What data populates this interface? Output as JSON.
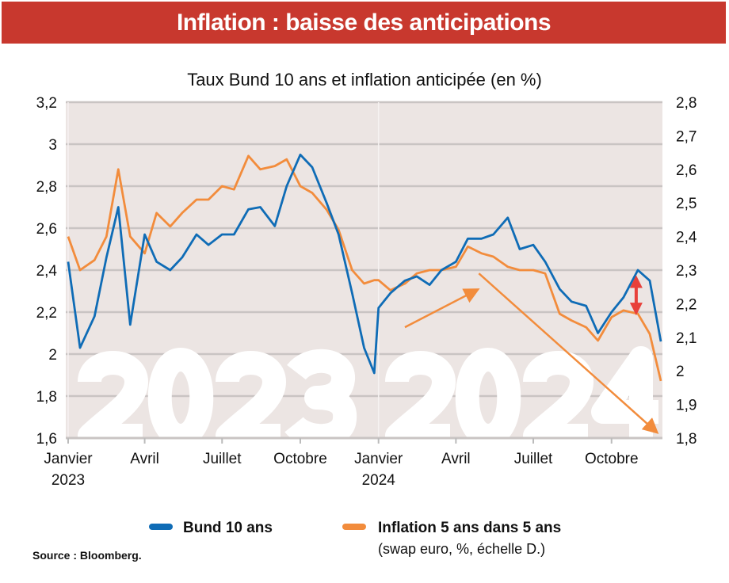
{
  "banner": "Inflation : baisse des anticipations",
  "chart_data": {
    "type": "line",
    "title": "Taux Bund 10 ans et inflation anticipée (en %)",
    "source": "Source : Bloomberg.",
    "x_range": [
      "2023-01-01",
      "2024-11-28"
    ],
    "x_ticks": [
      {
        "date": "2023-01-01",
        "label": "Janvier",
        "year": "2023"
      },
      {
        "date": "2023-04-01",
        "label": "Avril"
      },
      {
        "date": "2023-07-01",
        "label": "Juillet"
      },
      {
        "date": "2023-10-01",
        "label": "Octobre"
      },
      {
        "date": "2024-01-01",
        "label": "Janvier",
        "year": "2024"
      },
      {
        "date": "2024-04-01",
        "label": "Avril"
      },
      {
        "date": "2024-07-01",
        "label": "Juillet"
      },
      {
        "date": "2024-10-01",
        "label": "Octobre"
      }
    ],
    "y_left": {
      "range": [
        1.6,
        3.2
      ],
      "ticks": [
        "1,6",
        "1,8",
        "2",
        "2,2",
        "2,4",
        "2,6",
        "2,8",
        "3",
        "3,2"
      ],
      "values": [
        1.6,
        1.8,
        2.0,
        2.2,
        2.4,
        2.6,
        2.8,
        3.0,
        3.2
      ]
    },
    "y_right": {
      "range": [
        1.8,
        2.8
      ],
      "ticks": [
        "1,8",
        "1,9",
        "2",
        "2,1",
        "2,2",
        "2,3",
        "2,4",
        "2,5",
        "2,6",
        "2,7",
        "2,8"
      ],
      "values": [
        1.8,
        1.9,
        2.0,
        2.1,
        2.2,
        2.3,
        2.4,
        2.5,
        2.6,
        2.7,
        2.8
      ]
    },
    "grid": "horizontal",
    "legend_position": "bottom",
    "watermarks": [
      "2023",
      "2024"
    ],
    "x": [
      "2023-01-01",
      "2023-01-15",
      "2023-02-01",
      "2023-02-15",
      "2023-03-01",
      "2023-03-15",
      "2023-04-01",
      "2023-04-15",
      "2023-05-01",
      "2023-05-15",
      "2023-06-01",
      "2023-06-15",
      "2023-07-01",
      "2023-07-15",
      "2023-08-01",
      "2023-08-15",
      "2023-09-01",
      "2023-09-15",
      "2023-10-01",
      "2023-10-15",
      "2023-11-01",
      "2023-11-15",
      "2023-12-01",
      "2023-12-15",
      "2023-12-27",
      "2024-01-01",
      "2024-01-15",
      "2024-02-01",
      "2024-02-15",
      "2024-03-01",
      "2024-03-15",
      "2024-04-01",
      "2024-04-15",
      "2024-05-01",
      "2024-05-15",
      "2024-06-01",
      "2024-06-15",
      "2024-07-01",
      "2024-07-15",
      "2024-08-01",
      "2024-08-15",
      "2024-09-01",
      "2024-09-15",
      "2024-10-01",
      "2024-10-15",
      "2024-11-01",
      "2024-11-15",
      "2024-11-28"
    ],
    "series": [
      {
        "name": "Bund 10 ans",
        "axis": "left",
        "color": "#0f6cb6",
        "values": [
          2.44,
          2.03,
          2.18,
          2.46,
          2.7,
          2.14,
          2.57,
          2.44,
          2.4,
          2.46,
          2.57,
          2.52,
          2.57,
          2.57,
          2.69,
          2.7,
          2.61,
          2.8,
          2.95,
          2.89,
          2.72,
          2.57,
          2.29,
          2.03,
          1.91,
          2.22,
          2.29,
          2.35,
          2.37,
          2.33,
          2.4,
          2.44,
          2.55,
          2.55,
          2.57,
          2.65,
          2.5,
          2.52,
          2.44,
          2.31,
          2.25,
          2.23,
          2.1,
          2.2,
          2.27,
          2.4,
          2.35,
          2.06
        ]
      },
      {
        "name": "Inflation 5 ans dans 5 ans",
        "subtitle": "(swap euro, %, échelle D.)",
        "axis": "right",
        "color": "#f28c3c",
        "values": [
          2.4,
          2.3,
          2.33,
          2.4,
          2.6,
          2.4,
          2.35,
          2.47,
          2.43,
          2.47,
          2.51,
          2.51,
          2.55,
          2.54,
          2.64,
          2.6,
          2.61,
          2.63,
          2.55,
          2.53,
          2.48,
          2.42,
          2.3,
          2.26,
          2.27,
          2.27,
          2.24,
          2.26,
          2.29,
          2.3,
          2.3,
          2.31,
          2.37,
          2.35,
          2.34,
          2.31,
          2.3,
          2.3,
          2.29,
          2.17,
          2.15,
          2.13,
          2.09,
          2.16,
          2.18,
          2.17,
          2.11,
          1.97
        ]
      }
    ],
    "annotations": [
      {
        "type": "arrow",
        "color": "#f28c3c",
        "axis": "right",
        "from": [
          "2024-02-01",
          2.13
        ],
        "to": [
          "2024-04-25",
          2.24
        ]
      },
      {
        "type": "arrow",
        "color": "#f28c3c",
        "axis": "right",
        "from": [
          "2024-04-28",
          2.29
        ],
        "to": [
          "2024-11-22",
          1.82
        ]
      },
      {
        "type": "double-arrow",
        "color": "#e8403a",
        "axis": "right",
        "date": "2024-10-30",
        "from": 2.17,
        "to": 2.28
      }
    ]
  },
  "colors": {
    "banner": "#c8382e",
    "plot_bg": "#ece5e3",
    "grid": "#c9c4c3"
  }
}
